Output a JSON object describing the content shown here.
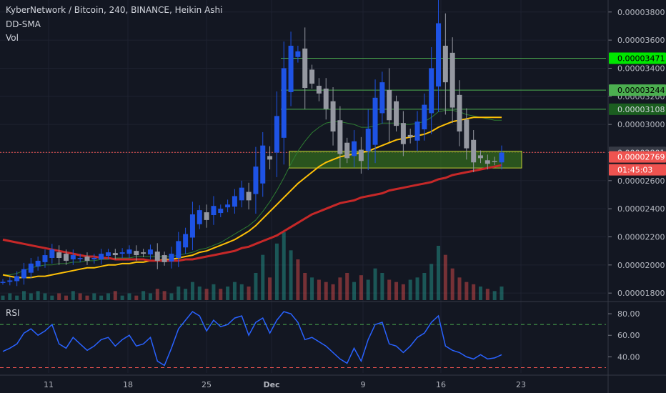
{
  "header": {
    "title": "KyberNetwork / Bitcoin, 240, BINANCE, Heikin Ashi",
    "indicator1": "DD-SMA",
    "indicator2": "Vol"
  },
  "rsi_label": "RSI",
  "colors": {
    "background": "#131722",
    "grid": "#1e2230",
    "text": "#b2b5be",
    "candle_up": "#1e53e5",
    "candle_down": "#9598a1",
    "sma_fast": "#2e7d32",
    "sma_mid": "#ffc107",
    "sma_slow": "#c62828",
    "rsi_line": "#2962ff",
    "level_line": "#4caf50",
    "support_zone": "#33691e",
    "current_price_line": "#ef5350"
  },
  "chart_data": [
    {
      "type": "candlestick",
      "title": "KyberNetwork / Bitcoin, 240, BINANCE, Heikin Ashi",
      "ylim": [
        1.75e-05,
        3.86e-05
      ],
      "y_ticks": [
        "0.00001800",
        "0.00002000",
        "0.00002200",
        "0.00002400",
        "0.00002600",
        "0.00002800",
        "0.00003000",
        "0.00003200",
        "0.00003400",
        "0.00003600",
        "0.00003800"
      ],
      "x_ticks": [
        "11",
        "18",
        "25",
        "Dec",
        "9",
        "16",
        "23"
      ],
      "price_tags": [
        {
          "label": "0.00003471",
          "value": 3.471e-05,
          "color": "#00e600",
          "text_color": "#000000"
        },
        {
          "label": "0.00003244",
          "value": 3.244e-05,
          "color": "#4caf50",
          "text_color": "#000000"
        },
        {
          "label": "0.00003108",
          "value": 3.108e-05,
          "color": "#1b5e20",
          "text_color": "#d1d4dc"
        },
        {
          "label": "0.00002801",
          "value": 2.801e-05,
          "color": "#363a45",
          "text_color": "#d1d4dc"
        },
        {
          "label": "0.00002769",
          "value": 2.769e-05,
          "color": "#ef5350",
          "text_color": "#ffffff"
        },
        {
          "label": "01:45:03",
          "value": 2.72e-05,
          "color": "#ef5350",
          "text_color": "#ffffff"
        }
      ],
      "horizontal_levels": [
        3.471e-05,
        3.244e-05,
        3.108e-05
      ],
      "support_zone": [
        2.69e-05,
        2.81e-05
      ],
      "current_price": 2.801e-05,
      "close_series": [
        1.88e-05,
        1.89e-05,
        1.92e-05,
        1.97e-05,
        2.01e-05,
        2.03e-05,
        2.07e-05,
        2.11e-05,
        2.05e-05,
        2.03e-05,
        2.07e-05,
        2.05e-05,
        2.03e-05,
        2.05e-05,
        2.08e-05,
        2.09e-05,
        2.07e-05,
        2.09e-05,
        2.11e-05,
        2.07e-05,
        2.08e-05,
        2.11e-05,
        2.03e-05,
        2.02e-05,
        2.08e-05,
        2.17e-05,
        2.22e-05,
        2.36e-05,
        2.39e-05,
        2.32e-05,
        2.42e-05,
        2.4e-05,
        2.43e-05,
        2.49e-05,
        2.55e-05,
        2.46e-05,
        2.7e-05,
        2.85e-05,
        2.75e-05,
        3.06e-05,
        3.4e-05,
        3.56e-05,
        3.52e-05,
        3.26e-05,
        3.29e-05,
        3.22e-05,
        3.11e-05,
        2.95e-05,
        2.79e-05,
        2.76e-05,
        2.88e-05,
        2.74e-05,
        2.97e-05,
        3.19e-05,
        3.3e-05,
        3.03e-05,
        2.99e-05,
        2.86e-05,
        2.91e-05,
        3.02e-05,
        3.14e-05,
        3.4e-05,
        3.72e-05,
        3.3e-05,
        3.12e-05,
        2.95e-05,
        2.83e-05,
        2.73e-05,
        2.76e-05,
        2.72e-05,
        2.74e-05,
        2.8e-05
      ],
      "series": [
        {
          "name": "DD-SMA fast",
          "values": [
            1.93e-05,
            1.93e-05,
            1.94e-05,
            1.96e-05,
            1.98e-05,
            1.99e-05,
            2e-05,
            2e-05,
            2.01e-05,
            2.01e-05,
            2.02e-05,
            2.02e-05,
            2.03e-05,
            2.03e-05,
            2.04e-05,
            2.04e-05,
            2.05e-05,
            2.05e-05,
            2.05e-05,
            2.06e-05,
            2.06e-05,
            2.06e-05,
            2.06e-05,
            2.06e-05,
            2.06e-05,
            2.07e-05,
            2.08e-05,
            2.09e-05,
            2.11e-05,
            2.12e-05,
            2.14e-05,
            2.16e-05,
            2.19e-05,
            2.22e-05,
            2.25e-05,
            2.28e-05,
            2.32e-05,
            2.38e-05,
            2.45e-05,
            2.53e-05,
            2.62e-05,
            2.72e-05,
            2.81e-05,
            2.88e-05,
            2.94e-05,
            2.98e-05,
            3.01e-05,
            3.02e-05,
            3.02e-05,
            3.01e-05,
            3e-05,
            2.98e-05,
            2.98e-05,
            2.99e-05,
            3.01e-05,
            3.01e-05,
            3.01e-05,
            3e-05,
            3e-05,
            3.01e-05,
            3.02e-05,
            3.05e-05,
            3.09e-05,
            3.1e-05,
            3.1e-05,
            3.09e-05,
            3.07e-05,
            3.06e-05,
            3.05e-05,
            3.04e-05,
            3.03e-05,
            3.03e-05
          ]
        },
        {
          "name": "DD-SMA mid",
          "values": [
            1.93e-05,
            1.92e-05,
            1.91e-05,
            1.91e-05,
            1.91e-05,
            1.92e-05,
            1.92e-05,
            1.93e-05,
            1.94e-05,
            1.95e-05,
            1.96e-05,
            1.97e-05,
            1.98e-05,
            1.98e-05,
            1.99e-05,
            2e-05,
            2e-05,
            2.01e-05,
            2.01e-05,
            2.02e-05,
            2.02e-05,
            2.03e-05,
            2.03e-05,
            2.04e-05,
            2.04e-05,
            2.05e-05,
            2.06e-05,
            2.07e-05,
            2.09e-05,
            2.1e-05,
            2.12e-05,
            2.14e-05,
            2.16e-05,
            2.18e-05,
            2.21e-05,
            2.24e-05,
            2.28e-05,
            2.33e-05,
            2.38e-05,
            2.43e-05,
            2.48e-05,
            2.53e-05,
            2.58e-05,
            2.62e-05,
            2.66e-05,
            2.7e-05,
            2.73e-05,
            2.75e-05,
            2.77e-05,
            2.78e-05,
            2.79e-05,
            2.8e-05,
            2.81e-05,
            2.83e-05,
            2.85e-05,
            2.87e-05,
            2.89e-05,
            2.9e-05,
            2.91e-05,
            2.92e-05,
            2.93e-05,
            2.95e-05,
            2.98e-05,
            3e-05,
            3.02e-05,
            3.03e-05,
            3.04e-05,
            3.05e-05,
            3.05e-05,
            3.05e-05,
            3.05e-05,
            3.05e-05
          ]
        },
        {
          "name": "DD-SMA slow",
          "values": [
            2.18e-05,
            2.17e-05,
            2.16e-05,
            2.15e-05,
            2.14e-05,
            2.13e-05,
            2.12e-05,
            2.11e-05,
            2.1e-05,
            2.09e-05,
            2.08e-05,
            2.07e-05,
            2.06e-05,
            2.06e-05,
            2.05e-05,
            2.05e-05,
            2.04e-05,
            2.04e-05,
            2.04e-05,
            2.04e-05,
            2.04e-05,
            2.03e-05,
            2.03e-05,
            2.03e-05,
            2.03e-05,
            2.03e-05,
            2.04e-05,
            2.04e-05,
            2.05e-05,
            2.06e-05,
            2.07e-05,
            2.08e-05,
            2.09e-05,
            2.1e-05,
            2.12e-05,
            2.13e-05,
            2.15e-05,
            2.17e-05,
            2.19e-05,
            2.21e-05,
            2.24e-05,
            2.27e-05,
            2.3e-05,
            2.33e-05,
            2.36e-05,
            2.38e-05,
            2.4e-05,
            2.42e-05,
            2.44e-05,
            2.45e-05,
            2.46e-05,
            2.48e-05,
            2.49e-05,
            2.5e-05,
            2.51e-05,
            2.53e-05,
            2.54e-05,
            2.55e-05,
            2.56e-05,
            2.57e-05,
            2.58e-05,
            2.59e-05,
            2.61e-05,
            2.62e-05,
            2.64e-05,
            2.65e-05,
            2.66e-05,
            2.67e-05,
            2.68e-05,
            2.69e-05,
            2.7e-05,
            2.71e-05
          ]
        }
      ],
      "volume": [
        2,
        3,
        2,
        4,
        3,
        4,
        3,
        2,
        3,
        2,
        4,
        3,
        2,
        3,
        2,
        3,
        4,
        2,
        3,
        2,
        4,
        3,
        5,
        4,
        3,
        6,
        5,
        8,
        6,
        5,
        7,
        5,
        6,
        8,
        7,
        6,
        12,
        20,
        10,
        25,
        30,
        22,
        18,
        12,
        10,
        9,
        8,
        7,
        10,
        12,
        8,
        11,
        9,
        14,
        12,
        9,
        8,
        7,
        9,
        10,
        12,
        16,
        24,
        20,
        14,
        10,
        8,
        7,
        6,
        5,
        4,
        6
      ]
    },
    {
      "type": "line",
      "title": "RSI",
      "ylim": [
        25,
        90
      ],
      "y_ticks": [
        "40.00",
        "60.00",
        "80.00"
      ],
      "reference_lines": [
        70,
        30
      ],
      "values": [
        45,
        48,
        52,
        62,
        66,
        60,
        64,
        70,
        52,
        48,
        58,
        52,
        46,
        50,
        56,
        58,
        50,
        56,
        60,
        50,
        52,
        58,
        36,
        32,
        48,
        66,
        74,
        82,
        78,
        64,
        74,
        68,
        70,
        76,
        78,
        60,
        72,
        76,
        62,
        74,
        82,
        80,
        72,
        56,
        58,
        54,
        50,
        44,
        38,
        34,
        48,
        36,
        56,
        70,
        72,
        52,
        50,
        44,
        50,
        58,
        62,
        72,
        78,
        50,
        46,
        44,
        40,
        38,
        42,
        38,
        39,
        42
      ]
    }
  ]
}
